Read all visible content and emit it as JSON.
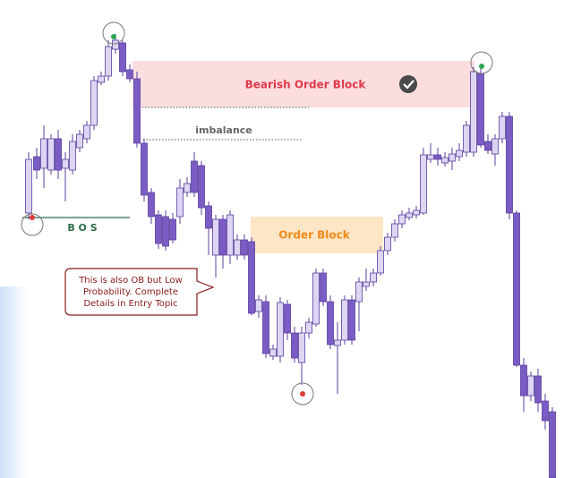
{
  "labels": {
    "bearish_order_block": "Bearish Order Block",
    "imbalance": "imbalance",
    "bos": "B O S",
    "order_block": "Order Block"
  },
  "callout": {
    "lines": [
      "This is also OB but Low",
      "Probability. Complete",
      "Details in Entry Topic"
    ]
  }
}
